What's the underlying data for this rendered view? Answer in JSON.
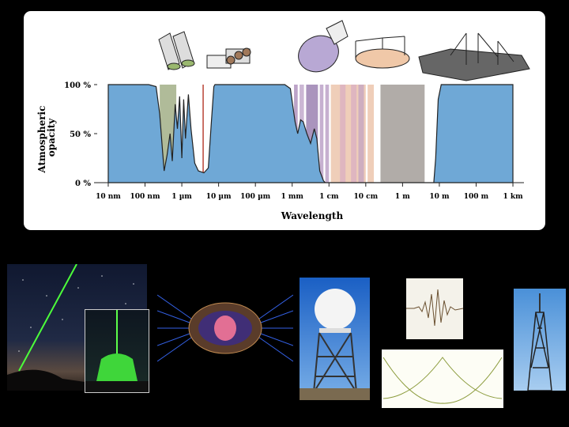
{
  "chart_data": {
    "type": "area",
    "title": "",
    "xlabel": "Wavelength",
    "ylabel_line1": "Atmospheric",
    "ylabel_line2": "opacity",
    "x_ticks": [
      "10 nm",
      "100 nm",
      "1 µm",
      "10 µm",
      "100 µm",
      "1 mm",
      "1 cm",
      "10 cm",
      "1 m",
      "10 m",
      "100 m",
      "1 km"
    ],
    "y_ticks": [
      "100 %",
      "50 %",
      "0 %"
    ],
    "x_scale": "log",
    "ylim": [
      0,
      100
    ],
    "series": [
      {
        "color": "#6fa8d6",
        "points": [
          [
            -8,
            100
          ],
          [
            -6.9,
            100
          ],
          [
            -6.7,
            98
          ],
          [
            -6.6,
            70
          ],
          [
            -6.52,
            30
          ],
          [
            -6.48,
            12
          ],
          [
            -6.4,
            28
          ],
          [
            -6.32,
            50
          ],
          [
            -6.26,
            22
          ],
          [
            -6.18,
            80
          ],
          [
            -6.12,
            55
          ],
          [
            -6.06,
            88
          ],
          [
            -6.0,
            25
          ],
          [
            -5.95,
            85
          ],
          [
            -5.9,
            45
          ],
          [
            -5.82,
            90
          ],
          [
            -5.75,
            55
          ],
          [
            -5.65,
            20
          ],
          [
            -5.55,
            12
          ],
          [
            -5.4,
            10
          ],
          [
            -5.28,
            15
          ],
          [
            -5.2,
            60
          ],
          [
            -5.13,
            98
          ],
          [
            -5.1,
            100
          ],
          [
            -3.2,
            100
          ],
          [
            -3.05,
            96
          ],
          [
            -2.92,
            62
          ],
          [
            -2.85,
            50
          ],
          [
            -2.77,
            64
          ],
          [
            -2.7,
            62
          ],
          [
            -2.6,
            50
          ],
          [
            -2.5,
            40
          ],
          [
            -2.4,
            55
          ],
          [
            -2.33,
            45
          ],
          [
            -2.25,
            12
          ],
          [
            -2.15,
            2
          ],
          [
            -2.1,
            0
          ],
          [
            0.85,
            0
          ],
          [
            0.9,
            25
          ],
          [
            0.97,
            85
          ],
          [
            1.05,
            100
          ],
          [
            3,
            100
          ]
        ]
      }
    ],
    "bands": [
      {
        "from": -6.6,
        "to": -6.15,
        "color": "#8f9e6e",
        "opacity": 0.7
      },
      {
        "from": -5.44,
        "to": -5.4,
        "color": "#c0564a",
        "opacity": 0.9
      },
      {
        "from": -2.95,
        "to": -2.85,
        "color": "#a07cb0",
        "opacity": 0.7
      },
      {
        "from": -2.8,
        "to": -2.68,
        "color": "#a07cb0",
        "opacity": 0.55
      },
      {
        "from": -2.62,
        "to": -2.3,
        "color": "#7d5b9a",
        "opacity": 0.65
      },
      {
        "from": -2.25,
        "to": -2.15,
        "color": "#a07cb0",
        "opacity": 0.6
      },
      {
        "from": -2.1,
        "to": -2.0,
        "color": "#a07cb0",
        "opacity": 0.6
      },
      {
        "from": -1.95,
        "to": -1.0,
        "color": "#e9bda2",
        "opacity": 0.75
      },
      {
        "from": -1.7,
        "to": -1.55,
        "color": "#d4a7c5",
        "opacity": 0.6
      },
      {
        "from": -1.4,
        "to": -1.25,
        "color": "#d4a7c5",
        "opacity": 0.6
      },
      {
        "from": -1.2,
        "to": -1.05,
        "color": "#b89ac4",
        "opacity": 0.6
      },
      {
        "from": -0.95,
        "to": -0.78,
        "color": "#e9bda2",
        "opacity": 0.75
      },
      {
        "from": -0.6,
        "to": 0.6,
        "color": "#a39d99",
        "opacity": 0.85
      }
    ]
  }
}
